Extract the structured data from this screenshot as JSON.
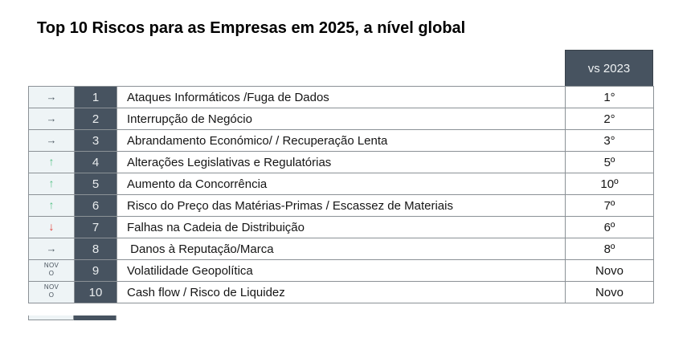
{
  "title": "Top 10 Riscos para as Empresas em 2025, a nível global",
  "chart_data": {
    "type": "table",
    "title": "Top 10 Riscos para as Empresas em 2025, a nível global",
    "vs_header": "vs 2023",
    "columns": [
      "trend_indicator",
      "rank",
      "risk",
      "vs_2023"
    ],
    "rows": [
      {
        "movement": "same",
        "indicator": "→",
        "rank": "1",
        "risk": "Ataques Informáticos /Fuga de Dados",
        "vs": "1°"
      },
      {
        "movement": "same",
        "indicator": "→",
        "rank": "2",
        "risk": "Interrupção de Negócio",
        "vs": "2°"
      },
      {
        "movement": "same",
        "indicator": "→",
        "rank": "3",
        "risk": "Abrandamento Económico/ / Recuperação Lenta",
        "vs": "3°"
      },
      {
        "movement": "up",
        "indicator": "↑",
        "rank": "4",
        "risk": "Alterações Legislativas e Regulatórias",
        "vs": "5º"
      },
      {
        "movement": "up",
        "indicator": "↑",
        "rank": "5",
        "risk": "Aumento da Concorrência",
        "vs": "10º"
      },
      {
        "movement": "up",
        "indicator": "↑",
        "rank": "6",
        "risk": "Risco do Preço das Matérias-Primas / Escassez de Materiais",
        "vs": "7º"
      },
      {
        "movement": "down",
        "indicator": "↓",
        "rank": "7",
        "risk": "Falhas na Cadeia de Distribuição",
        "vs": "6º"
      },
      {
        "movement": "same",
        "indicator": "→",
        "rank": "8",
        "risk": " Danos à Reputação/Marca",
        "vs": "8º"
      },
      {
        "movement": "new",
        "indicator": "NOVO",
        "rank": "9",
        "risk": "Volatilidade Geopolítica",
        "vs": "Novo"
      },
      {
        "movement": "new",
        "indicator": "NOVO",
        "rank": "10",
        "risk": "Cash flow / Risco de Liquidez",
        "vs": "Novo"
      }
    ]
  },
  "colors": {
    "header_bg": "#475360",
    "rank_bg": "#475360",
    "indicator_bg": "#eef4f6",
    "trend_up": "#57c287",
    "trend_down": "#e2403a",
    "trend_same": "#4f5a64",
    "grid_border": "#8b9196",
    "text": "#151515"
  }
}
